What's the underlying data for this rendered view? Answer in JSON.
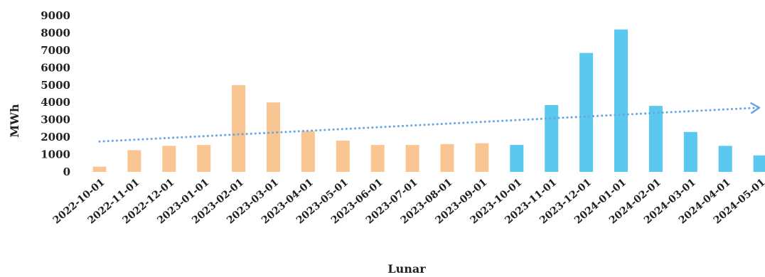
{
  "chart_data": {
    "type": "bar",
    "title": "",
    "xlabel": "Lunar",
    "ylabel": "MWh",
    "ylim": [
      0,
      9000
    ],
    "yticks": [
      0,
      1000,
      2000,
      3000,
      4000,
      5000,
      6000,
      7000,
      8000,
      9000
    ],
    "grid": false,
    "legend": "none",
    "categories": [
      "2022-10-01",
      "2022-11-01",
      "2022-12-01",
      "2023-01-01",
      "2023-02-01",
      "2023-03-01",
      "2023-04-01",
      "2023-05-01",
      "2023-06-01",
      "2023-07-01",
      "2023-08-01",
      "2023-09-01",
      "2023-10-01",
      "2023-11-01",
      "2023-12-01",
      "2024-01-01",
      "2024-02-01",
      "2024-03-01",
      "2024-04-01",
      "2024-05-01"
    ],
    "values": [
      300,
      1250,
      1500,
      1550,
      5000,
      4000,
      2350,
      1800,
      1550,
      1550,
      1600,
      1650,
      1550,
      3850,
      6850,
      8200,
      3800,
      2300,
      1500,
      950
    ],
    "bar_colors": [
      "#f9c593",
      "#f9c593",
      "#f9c593",
      "#f9c593",
      "#f9c593",
      "#f9c593",
      "#f9c593",
      "#f9c593",
      "#f9c593",
      "#f9c593",
      "#f9c593",
      "#f9c593",
      "#5bc8ef",
      "#5bc8ef",
      "#5bc8ef",
      "#5bc8ef",
      "#5bc8ef",
      "#5bc8ef",
      "#5bc8ef",
      "#5bc8ef"
    ],
    "trendline": {
      "style": "dotted",
      "color": "#6aa6e0",
      "start_value": 1750,
      "end_value": 3700,
      "arrow": true
    }
  }
}
